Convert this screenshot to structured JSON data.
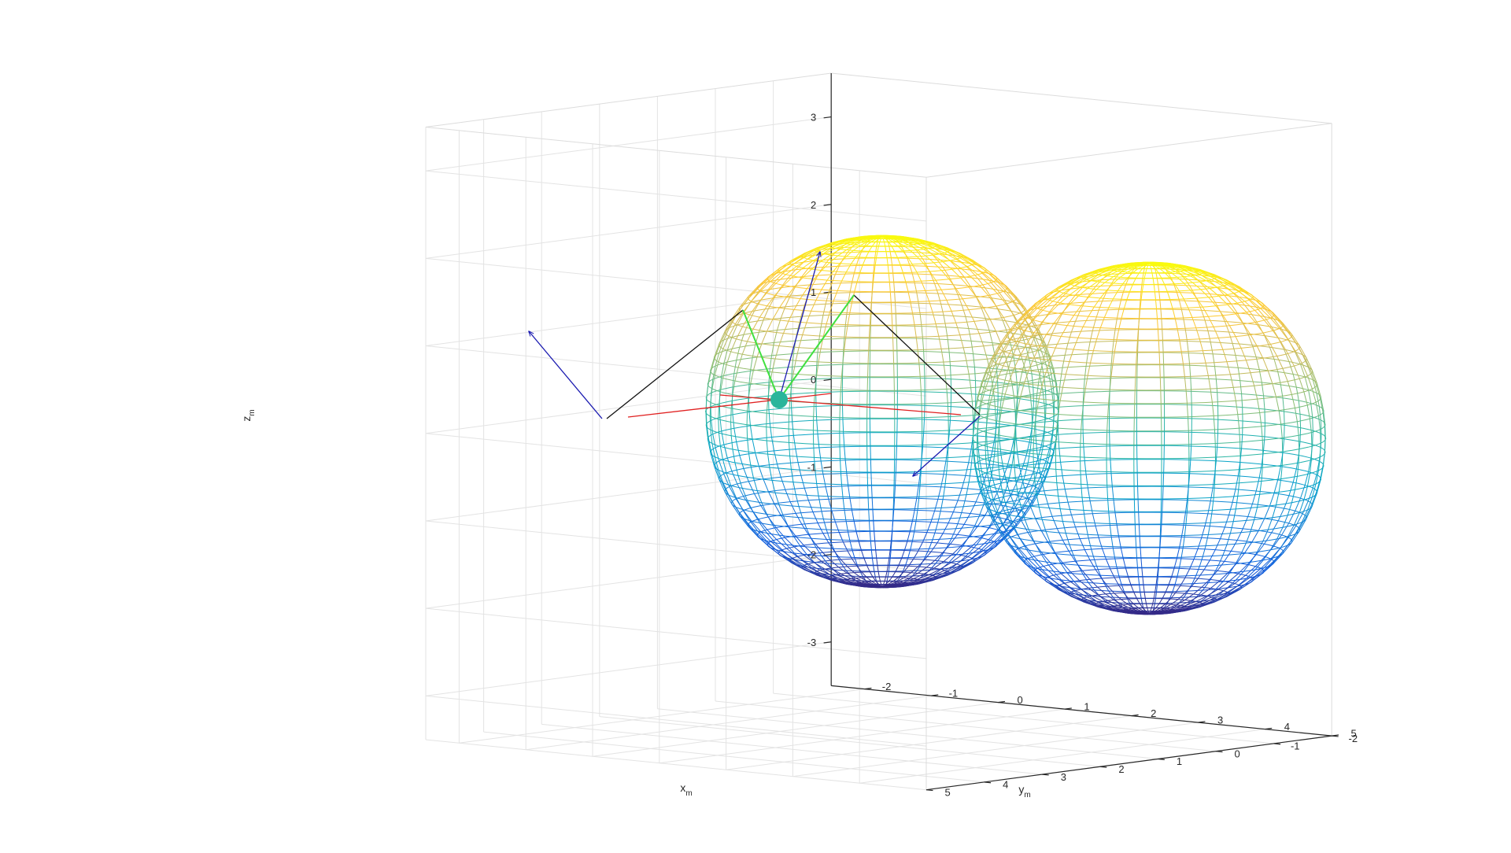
{
  "chart_data": {
    "type": "3d-wireframe",
    "xlabel": {
      "main": "x",
      "sub": "m"
    },
    "ylabel": {
      "main": "y",
      "sub": "m"
    },
    "zlabel": {
      "main": "z",
      "sub": "m"
    },
    "xlim": [
      -2.5,
      5
    ],
    "ylim": [
      -2,
      5
    ],
    "zlim": [
      -3.5,
      3.5
    ],
    "xticks": [
      "-2",
      "-1",
      "0",
      "1",
      "2",
      "3",
      "4",
      "5"
    ],
    "yticks": [
      "5",
      "4",
      "3",
      "2",
      "1",
      "0",
      "-1",
      "-2"
    ],
    "zticks": [
      "3",
      "2",
      "1",
      "0",
      "-1",
      "-2",
      "-3"
    ],
    "grid": true,
    "colormap": "parula",
    "colormap_stops": [
      "#352a87",
      "#0f5cdd",
      "#1481d6",
      "#06a4ca",
      "#2eb7a4",
      "#87bf77",
      "#d1bb59",
      "#fec832",
      "#f9fb0e"
    ],
    "series": [
      {
        "kind": "sphere",
        "center": [
          0,
          0,
          0
        ],
        "radius": 2
      },
      {
        "kind": "sphere",
        "center": [
          4,
          0,
          0
        ],
        "radius": 2
      },
      {
        "kind": "point",
        "color": "#2ab59b"
      },
      {
        "kind": "vector",
        "color": "#1a1ab0"
      },
      {
        "kind": "vector",
        "color": "#1a1ab0"
      },
      {
        "kind": "vector",
        "color": "#1a1ab0"
      },
      {
        "kind": "segment",
        "color": "#e02020"
      },
      {
        "kind": "segment",
        "color": "#e02020"
      },
      {
        "kind": "segment",
        "color": "#111111"
      },
      {
        "kind": "segment",
        "color": "#111111"
      },
      {
        "kind": "segment",
        "color": "#40e040"
      },
      {
        "kind": "segment",
        "color": "#40e040"
      }
    ]
  }
}
